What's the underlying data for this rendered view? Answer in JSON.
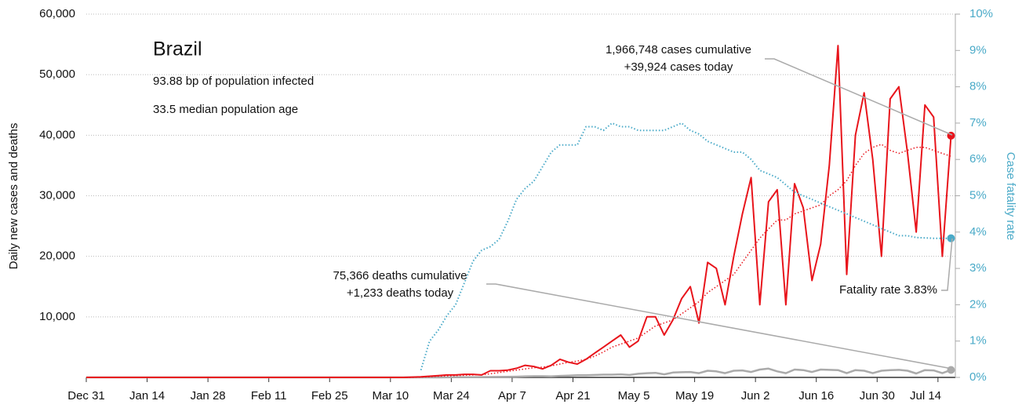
{
  "chart_data": {
    "type": "line",
    "title": "Brazil",
    "subtitle": [
      "93.88 bp of population infected",
      "33.5 median population age"
    ],
    "ylabel": "Daily new cases and deaths",
    "y2label": "Case fatality rate",
    "x": [
      "Dec 31",
      "Mar 13",
      "Mar 15",
      "Mar 17",
      "Mar 19",
      "Mar 21",
      "Mar 23",
      "Mar 25",
      "Mar 27",
      "Mar 29",
      "Mar 31",
      "Apr 2",
      "Apr 4",
      "Apr 6",
      "Apr 8",
      "Apr 10",
      "Apr 12",
      "Apr 14",
      "Apr 16",
      "Apr 18",
      "Apr 20",
      "Apr 22",
      "Apr 24",
      "Apr 26",
      "Apr 28",
      "Apr 30",
      "May 2",
      "May 4",
      "May 6",
      "May 8",
      "May 10",
      "May 12",
      "May 14",
      "May 16",
      "May 18",
      "May 20",
      "May 22",
      "May 24",
      "May 26",
      "May 28",
      "May 30",
      "Jun 1",
      "Jun 3",
      "Jun 5",
      "Jun 7",
      "Jun 9",
      "Jun 11",
      "Jun 13",
      "Jun 15",
      "Jun 17",
      "Jun 19",
      "Jun 21",
      "Jun 23",
      "Jun 25",
      "Jun 27",
      "Jun 29",
      "Jul 1",
      "Jul 3",
      "Jul 5",
      "Jul 7",
      "Jul 9",
      "Jul 11",
      "Jul 13",
      "Jul 15",
      "Jul 17"
    ],
    "xlim": [
      "Dec 31",
      "Jul 18"
    ],
    "xticks": [
      "Dec 31",
      "Jan 14",
      "Jan 28",
      "Feb 11",
      "Feb 25",
      "Mar 10",
      "Mar 24",
      "Apr 7",
      "Apr 21",
      "May 5",
      "May 19",
      "Jun 2",
      "Jun 16",
      "Jun 30",
      "Jul 14"
    ],
    "ylim": [
      0,
      60000
    ],
    "yticks": [
      {
        "value": 10000,
        "label": "10,000"
      },
      {
        "value": 20000,
        "label": "20,000"
      },
      {
        "value": 30000,
        "label": "30,000"
      },
      {
        "value": 40000,
        "label": "40,000"
      },
      {
        "value": 50000,
        "label": "50,000"
      },
      {
        "value": 60000,
        "label": "60,000"
      }
    ],
    "y2lim": [
      0,
      10
    ],
    "y2ticks": [
      {
        "value": 0,
        "label": "0%"
      },
      {
        "value": 1,
        "label": "1%"
      },
      {
        "value": 2,
        "label": "2%"
      },
      {
        "value": 3,
        "label": "3%"
      },
      {
        "value": 4,
        "label": "4%"
      },
      {
        "value": 5,
        "label": "5%"
      },
      {
        "value": 6,
        "label": "6%"
      },
      {
        "value": 7,
        "label": "7%"
      },
      {
        "value": 8,
        "label": "8%"
      },
      {
        "value": 9,
        "label": "9%"
      },
      {
        "value": 10,
        "label": "10%"
      }
    ],
    "grid": true,
    "series": [
      {
        "color": "#aaaaaa",
        "line_style": "solid",
        "width": 2.5,
        "end_marker": true,
        "values": [
          0,
          0,
          0,
          0,
          1,
          5,
          10,
          20,
          30,
          40,
          50,
          60,
          80,
          100,
          120,
          150,
          200,
          200,
          150,
          250,
          300,
          350,
          350,
          400,
          450,
          450,
          500,
          400,
          600,
          700,
          750,
          500,
          800,
          850,
          900,
          700,
          1100,
          1000,
          700,
          1100,
          1150,
          900,
          1300,
          1450,
          1000,
          700,
          1300,
          1200,
          900,
          1300,
          1250,
          1200,
          700,
          1200,
          1100,
          700,
          1100,
          1200,
          1250,
          1100,
          650,
          1200,
          1150,
          700,
          1233
        ]
      },
      {
        "color": "#e8141b",
        "line_style": "dotted",
        "width": 1.5,
        "end_marker": false,
        "values": [
          0,
          0,
          0,
          50,
          100,
          200,
          250,
          300,
          350,
          400,
          450,
          600,
          800,
          1000,
          1200,
          1400,
          1600,
          1700,
          1900,
          2200,
          2500,
          2700,
          3000,
          3500,
          4200,
          5000,
          5500,
          6000,
          6500,
          7500,
          8500,
          9000,
          9500,
          10500,
          11500,
          12500,
          14000,
          15000,
          16000,
          17000,
          19000,
          21000,
          23000,
          24500,
          26000,
          26000,
          27000,
          27500,
          28000,
          28500,
          30000,
          31000,
          32500,
          35000,
          37000,
          38000,
          38500,
          37500,
          37000,
          37500,
          38000,
          38000,
          37500,
          37000,
          36500
        ]
      },
      {
        "color": "#e8141b",
        "line_style": "solid",
        "width": 2,
        "end_marker": true,
        "values": [
          0,
          0,
          50,
          100,
          200,
          300,
          400,
          400,
          500,
          500,
          400,
          1100,
          1100,
          1200,
          1500,
          2000,
          1800,
          1400,
          2000,
          3000,
          2500,
          2200,
          3000,
          4000,
          5000,
          6000,
          7000,
          5000,
          6000,
          10000,
          10000,
          7000,
          9500,
          13000,
          15000,
          9000,
          19000,
          18000,
          12000,
          20000,
          27000,
          33000,
          12000,
          29000,
          31000,
          12000,
          32000,
          28000,
          16000,
          22000,
          35000,
          54800,
          17000,
          40000,
          47000,
          36000,
          20000,
          46000,
          48000,
          37000,
          24000,
          45000,
          43000,
          20000,
          39924
        ]
      },
      {
        "color": "#4aaac8",
        "line_style": "dotted",
        "width": 2,
        "end_marker": true,
        "axis": "y2",
        "values": [
          null,
          null,
          null,
          0.2,
          1.0,
          1.3,
          1.7,
          2.0,
          2.6,
          3.2,
          3.5,
          3.6,
          3.8,
          4.3,
          4.9,
          5.2,
          5.4,
          5.8,
          6.2,
          6.4,
          6.4,
          6.4,
          6.9,
          6.9,
          6.8,
          7.0,
          6.9,
          6.9,
          6.8,
          6.8,
          6.8,
          6.8,
          6.9,
          7.0,
          6.8,
          6.7,
          6.5,
          6.4,
          6.3,
          6.2,
          6.2,
          6.0,
          5.7,
          5.6,
          5.5,
          5.3,
          5.1,
          5.0,
          4.9,
          4.8,
          4.7,
          4.6,
          4.5,
          4.4,
          4.3,
          4.2,
          4.1,
          4.0,
          3.9,
          3.9,
          3.85,
          3.84,
          3.83,
          3.83,
          3.83
        ]
      }
    ],
    "annotations": [
      {
        "lines": [
          "1,966,748 cases cumulative",
          "+39,924 cases today"
        ]
      },
      {
        "lines": [
          "75,366 deaths cumulative",
          "+1,233 deaths today"
        ]
      },
      {
        "lines": [
          "Fatality rate 3.83%"
        ]
      }
    ]
  }
}
